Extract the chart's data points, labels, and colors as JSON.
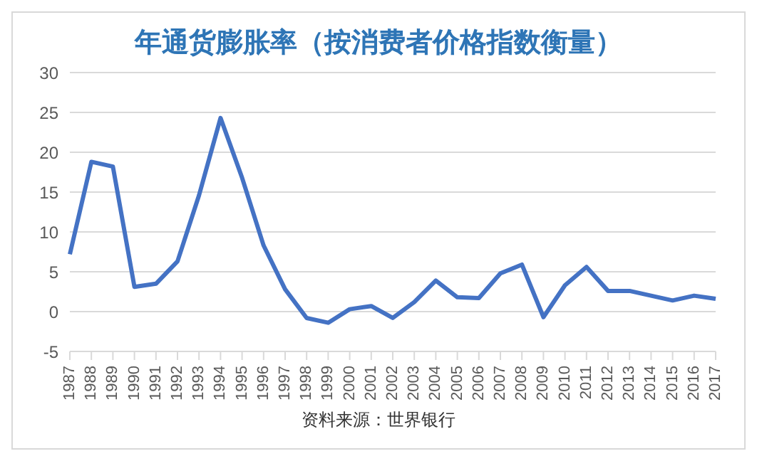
{
  "chart_data": {
    "type": "line",
    "title": "年通货膨胀率（按消费者价格指数衡量）",
    "categories": [
      "1987",
      "1988",
      "1989",
      "1990",
      "1991",
      "1992",
      "1993",
      "1994",
      "1995",
      "1996",
      "1997",
      "1998",
      "1999",
      "2000",
      "2001",
      "2002",
      "2003",
      "2004",
      "2005",
      "2006",
      "2007",
      "2008",
      "2009",
      "2010",
      "2011",
      "2012",
      "2013",
      "2014",
      "2015",
      "2016",
      "2017"
    ],
    "series": [
      {
        "color": "#4472c4",
        "values": [
          7.2,
          18.8,
          18.2,
          3.1,
          3.5,
          6.3,
          14.6,
          24.3,
          16.8,
          8.3,
          2.8,
          -0.8,
          -1.4,
          0.3,
          0.7,
          -0.8,
          1.2,
          3.9,
          1.8,
          1.7,
          4.8,
          5.9,
          -0.7,
          3.3,
          5.6,
          2.6,
          2.6,
          2.0,
          1.4,
          2.0,
          1.6
        ]
      }
    ],
    "ylim": [
      -5,
      30
    ],
    "yticks": [
      -5,
      0,
      5,
      10,
      15,
      20,
      25,
      30
    ],
    "grid": "y",
    "legend": false,
    "marker": "none",
    "line_style": "solid",
    "annotations": [
      "资料来源：世界银行"
    ]
  }
}
